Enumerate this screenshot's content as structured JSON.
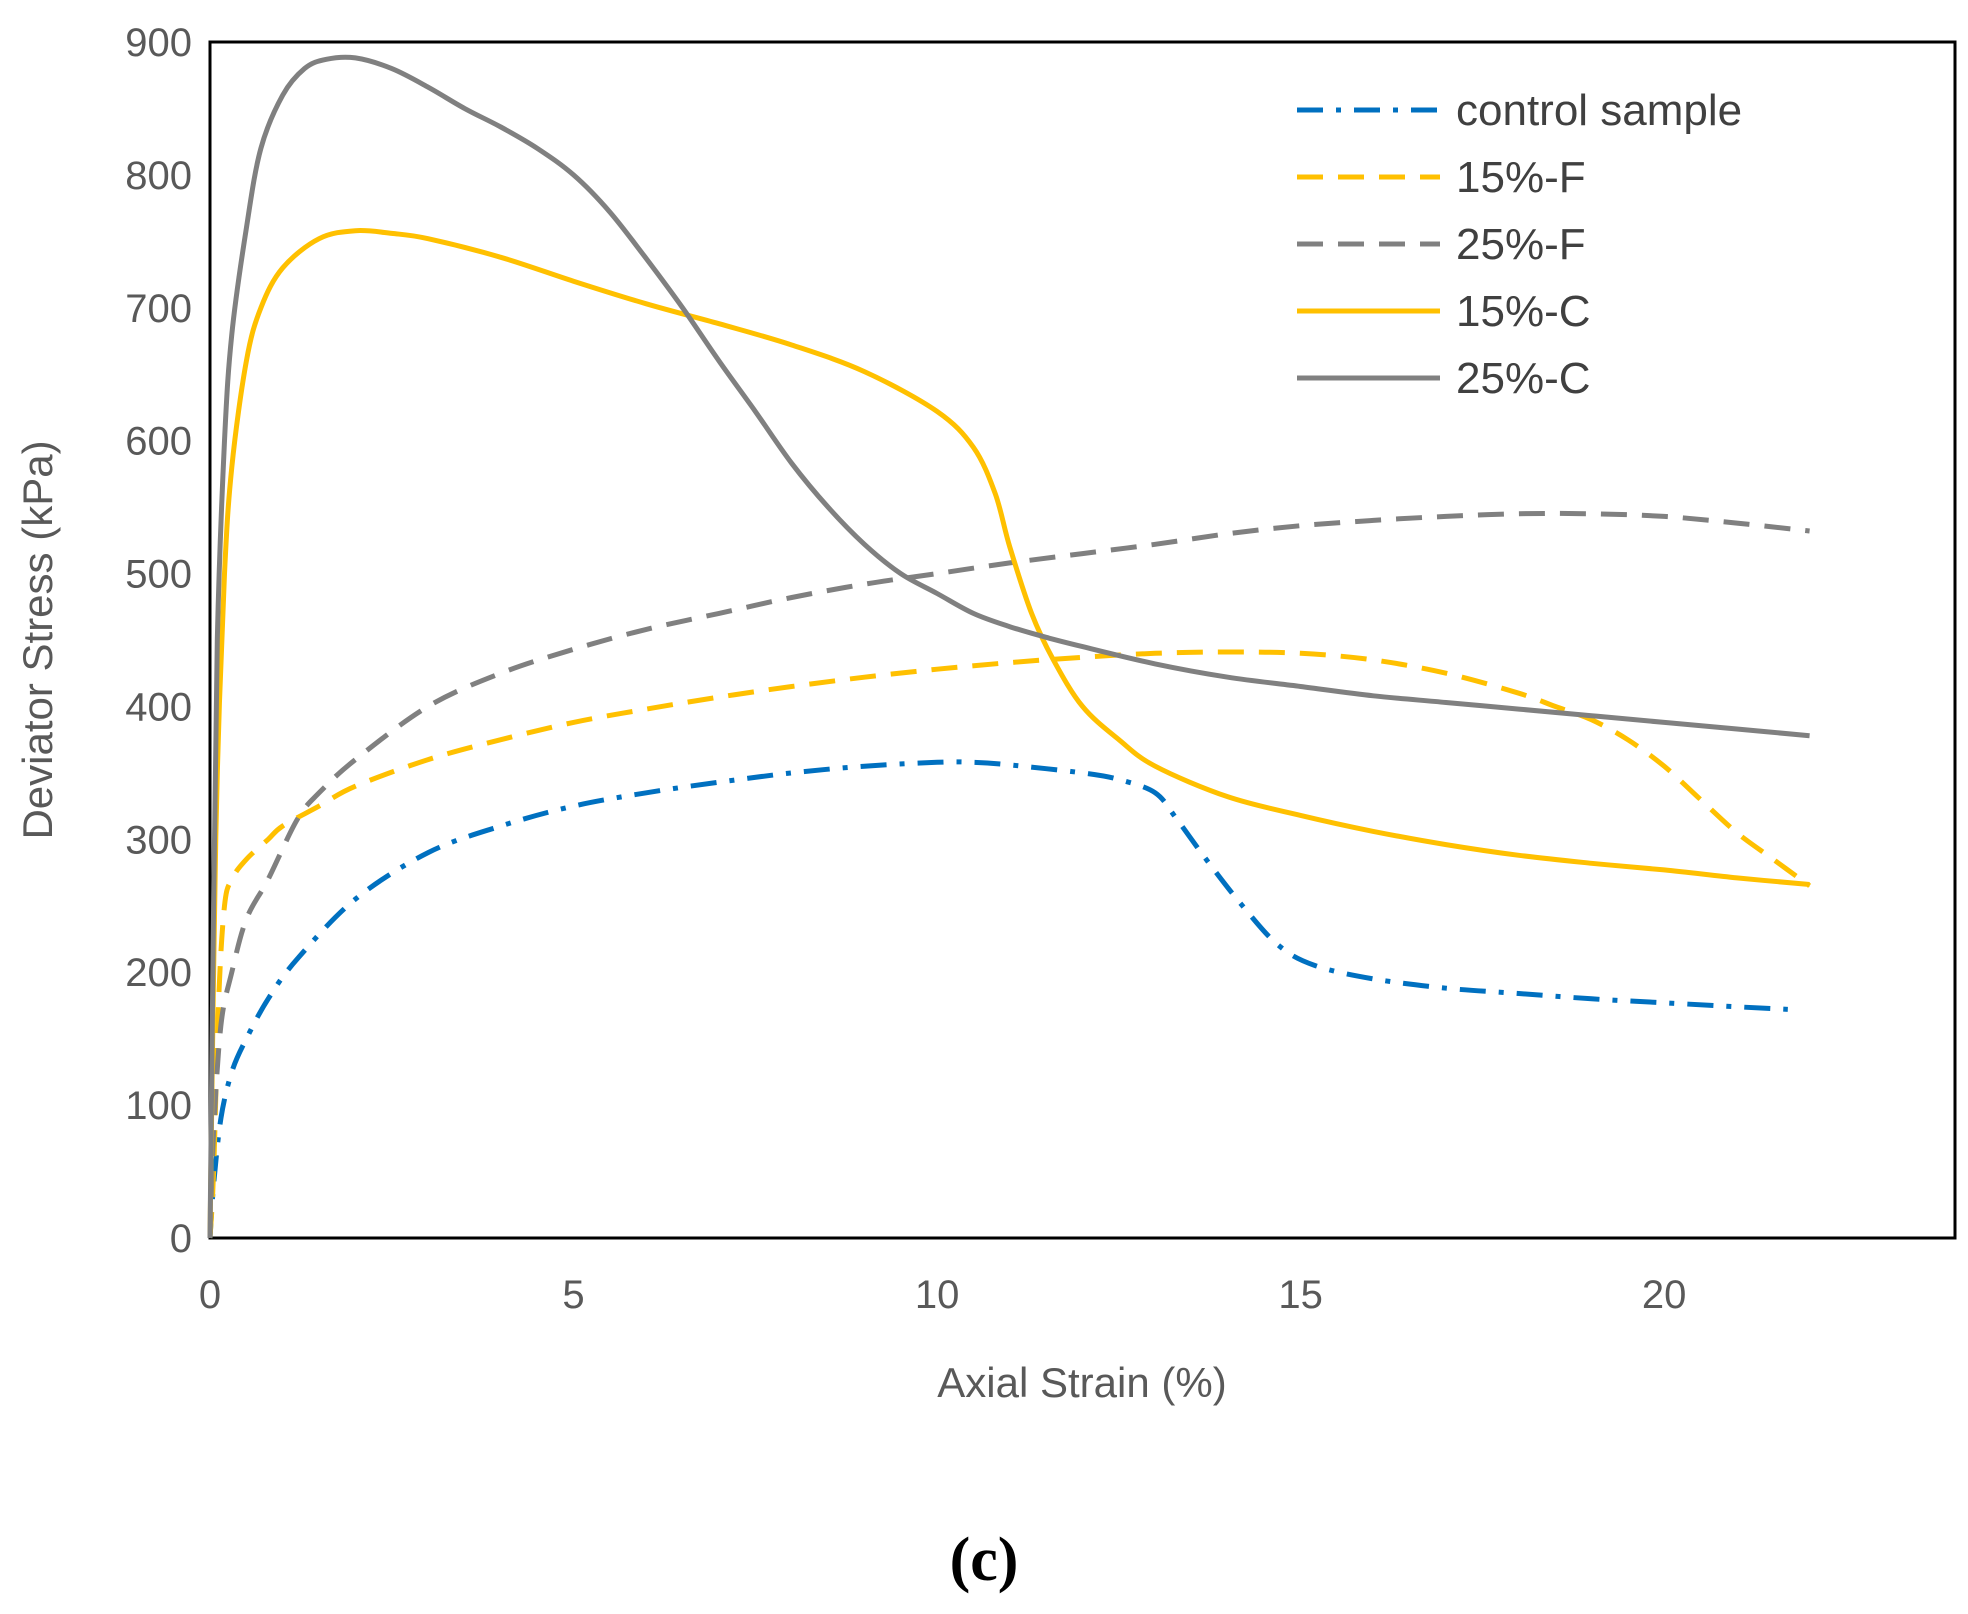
{
  "chart_data": {
    "type": "line",
    "title": "",
    "xlabel": "Axial Strain (%)",
    "ylabel": "Deviator Stress (kPa)",
    "xlim": [
      0,
      24
    ],
    "ylim": [
      0,
      900
    ],
    "xticks": [
      0,
      5,
      10,
      15,
      20
    ],
    "yticks": [
      0,
      100,
      200,
      300,
      400,
      500,
      600,
      700,
      800,
      900
    ],
    "grid": false,
    "legend_position": "top-right",
    "panel_label": "(c)",
    "series": [
      {
        "name": "control sample",
        "color": "#0070C0",
        "style": "dashdot",
        "x": [
          0,
          0.05,
          0.15,
          0.3,
          0.5,
          0.8,
          1.2,
          2,
          3,
          4,
          5,
          6,
          7,
          8,
          9,
          10,
          10.5,
          11,
          12,
          12.5,
          13,
          13.3,
          13.7,
          14.2,
          14.7,
          15.2,
          16,
          17,
          18,
          19,
          20,
          21,
          21.7
        ],
        "y": [
          0,
          40,
          90,
          125,
          150,
          180,
          210,
          255,
          290,
          310,
          325,
          335,
          343,
          350,
          355,
          358,
          358,
          356,
          350,
          345,
          335,
          315,
          285,
          250,
          220,
          205,
          195,
          188,
          184,
          180,
          177,
          174,
          172
        ]
      },
      {
        "name": "15%-F",
        "color": "#FFC000",
        "style": "dashed",
        "x": [
          0,
          0.05,
          0.12,
          0.2,
          0.3,
          0.5,
          0.8,
          1,
          1.5,
          2,
          3,
          4,
          5,
          6,
          7,
          8,
          9,
          10,
          11,
          12,
          13,
          14,
          15,
          16,
          17,
          18,
          18.5,
          19,
          19.5,
          20,
          20.5,
          21,
          21.5,
          22
        ],
        "y": [
          0,
          50,
          180,
          250,
          270,
          285,
          300,
          310,
          325,
          340,
          360,
          375,
          388,
          398,
          407,
          415,
          422,
          428,
          433,
          437,
          440,
          441,
          440,
          435,
          425,
          410,
          400,
          390,
          375,
          355,
          330,
          305,
          285,
          265
        ]
      },
      {
        "name": "25%-F",
        "color": "#808080",
        "style": "dashed",
        "x": [
          0,
          0.05,
          0.15,
          0.3,
          0.5,
          0.8,
          1.2,
          1.5,
          2,
          3,
          4,
          5,
          6,
          7,
          8,
          9,
          10,
          11,
          12,
          13,
          14,
          15,
          16,
          17,
          18,
          19,
          20,
          21,
          22
        ],
        "y": [
          0,
          80,
          160,
          200,
          240,
          270,
          315,
          335,
          360,
          400,
          425,
          443,
          458,
          470,
          482,
          492,
          500,
          508,
          515,
          522,
          530,
          536,
          540,
          543,
          545,
          545,
          543,
          538,
          532
        ]
      },
      {
        "name": "15%-C",
        "color": "#FFC000",
        "style": "solid",
        "x": [
          0,
          0.05,
          0.1,
          0.2,
          0.3,
          0.5,
          0.7,
          1,
          1.5,
          2,
          2.5,
          3,
          4,
          5,
          6,
          7,
          8,
          9,
          10,
          10.5,
          10.8,
          11,
          11.3,
          11.6,
          12,
          12.5,
          13,
          14,
          15,
          16,
          17,
          18,
          19,
          20,
          21,
          22
        ],
        "y": [
          0,
          200,
          350,
          500,
          580,
          660,
          700,
          730,
          752,
          758,
          756,
          752,
          738,
          720,
          703,
          688,
          672,
          652,
          622,
          595,
          560,
          520,
          470,
          435,
          400,
          375,
          355,
          332,
          318,
          306,
          296,
          288,
          282,
          277,
          271,
          266
        ]
      },
      {
        "name": "25%-C",
        "color": "#808080",
        "style": "solid",
        "x": [
          0,
          0.05,
          0.1,
          0.2,
          0.3,
          0.5,
          0.7,
          1,
          1.3,
          1.6,
          2,
          2.5,
          3,
          3.5,
          4,
          4.5,
          5,
          5.5,
          6,
          6.5,
          7,
          7.5,
          8,
          8.5,
          9,
          9.5,
          10,
          10.5,
          11,
          11.5,
          12,
          13,
          14,
          15,
          16,
          17,
          18,
          19,
          20,
          21,
          22
        ],
        "y": [
          0,
          250,
          450,
          600,
          680,
          760,
          820,
          860,
          880,
          887,
          888,
          880,
          866,
          850,
          836,
          820,
          800,
          772,
          737,
          700,
          660,
          622,
          583,
          550,
          522,
          500,
          485,
          470,
          460,
          452,
          445,
          432,
          422,
          415,
          408,
          403,
          398,
          393,
          388,
          383,
          378
        ]
      }
    ]
  }
}
